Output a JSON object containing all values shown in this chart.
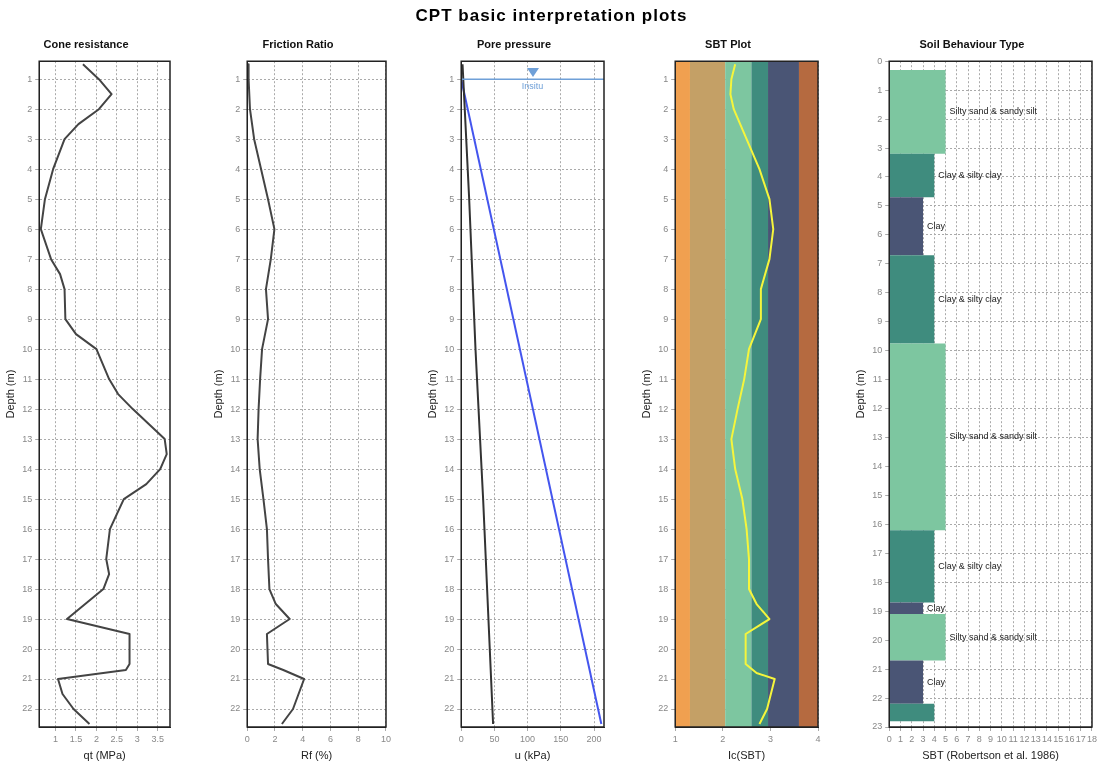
{
  "chart_data": [
    {
      "type": "line",
      "title": "Cone resistance",
      "xlabel": "qt (MPa)",
      "ylabel": "Depth (m)",
      "xlim": [
        0.6,
        3.8
      ],
      "xticks": [
        1,
        1.5,
        2,
        2.5,
        3,
        3.5
      ],
      "ylim": [
        22.6,
        0.4
      ],
      "yticks": [
        1,
        2,
        3,
        4,
        5,
        6,
        7,
        8,
        9,
        10,
        11,
        12,
        13,
        14,
        15,
        16,
        17,
        18,
        19,
        20,
        21,
        22
      ],
      "grid": true,
      "annotations": [
        "CPT basic interpretation plots"
      ],
      "series": [
        {
          "color": "#444444",
          "x": [
            1.67,
            2.06,
            2.37,
            2.06,
            1.56,
            1.22,
            0.94,
            0.74,
            0.64,
            0.89,
            1.11,
            1.22,
            1.24,
            1.5,
            2.0,
            2.31,
            2.53,
            2.89,
            3.28,
            3.67,
            3.72,
            3.56,
            3.22,
            2.67,
            2.33,
            2.24,
            2.31,
            2.17,
            1.28,
            2.81,
            2.81,
            2.72,
            1.06,
            1.17,
            1.44,
            1.83
          ],
          "values": [
            0.5,
            1,
            1.5,
            2,
            2.5,
            3,
            4,
            5,
            6,
            7,
            7.5,
            8,
            9,
            9.5,
            10,
            11,
            11.5,
            12,
            12.5,
            13,
            13.5,
            14,
            14.5,
            15,
            16,
            17,
            17.5,
            18,
            19,
            19.5,
            20.5,
            20.7,
            21,
            21.5,
            22,
            22.5
          ]
        }
      ]
    },
    {
      "type": "line",
      "title": "Friction Ratio",
      "xlabel": "Rf (%)",
      "ylabel": "Depth (m)",
      "xlim": [
        0,
        10
      ],
      "xticks": [
        0,
        2,
        4,
        6,
        8,
        10
      ],
      "ylim": [
        22.6,
        0.4
      ],
      "yticks": [
        1,
        2,
        3,
        4,
        5,
        6,
        7,
        8,
        9,
        10,
        11,
        12,
        13,
        14,
        15,
        16,
        17,
        18,
        19,
        20,
        21,
        22
      ],
      "grid": true,
      "series": [
        {
          "color": "#444444",
          "x": [
            0.1,
            0.1,
            0.2,
            0.5,
            1.0,
            1.5,
            1.96,
            1.7,
            1.35,
            1.5,
            1.07,
            0.93,
            0.82,
            0.75,
            0.9,
            1.17,
            1.42,
            1.5,
            1.6,
            2.06,
            3.06,
            1.42,
            1.5,
            2.6,
            4.1,
            3.3,
            2.5
          ],
          "values": [
            0.5,
            1,
            2,
            3,
            4,
            5,
            6,
            7,
            8,
            9,
            10,
            11,
            12,
            13,
            14,
            15,
            16,
            17,
            18,
            18.5,
            19,
            19.5,
            20.5,
            20.7,
            21,
            22,
            22.5
          ]
        }
      ]
    },
    {
      "type": "line",
      "title": "Pore pressure",
      "xlabel": "u (kPa)",
      "ylabel": "Depth (m)",
      "xlim": [
        0,
        215
      ],
      "xticks": [
        0,
        50,
        100,
        150,
        200
      ],
      "ylim": [
        22.6,
        0.4
      ],
      "yticks": [
        1,
        2,
        3,
        4,
        5,
        6,
        7,
        8,
        9,
        10,
        11,
        12,
        13,
        14,
        15,
        16,
        17,
        18,
        19,
        20,
        21,
        22
      ],
      "grid": true,
      "ref_lines": [
        {
          "axis": "y",
          "value": 1,
          "label": "Insitu",
          "color": "#6fa0d8"
        }
      ],
      "series": [
        {
          "color": "#333333",
          "x": [
            2,
            12,
            21.5,
            33,
            43,
            48
          ],
          "values": [
            0.5,
            5,
            10,
            15,
            20,
            22.5
          ]
        },
        {
          "color": "#4455ee",
          "x": [
            0,
            211
          ],
          "values": [
            1,
            22.5
          ]
        }
      ]
    },
    {
      "type": "line",
      "title": "SBT Plot",
      "xlabel": "Ic(SBT)",
      "ylabel": "Depth (m)",
      "xlim": [
        1,
        4
      ],
      "xticks": [
        1,
        2,
        3,
        4
      ],
      "ylim": [
        22.6,
        0.4
      ],
      "yticks": [
        1,
        2,
        3,
        4,
        5,
        6,
        7,
        8,
        9,
        10,
        11,
        12,
        13,
        14,
        15,
        16,
        17,
        18,
        19,
        20,
        21,
        22
      ],
      "grid": true,
      "bands": [
        {
          "axis": "x",
          "from": 1,
          "to": 1.31,
          "color": "#f0a050"
        },
        {
          "axis": "x",
          "from": 1.31,
          "to": 2.05,
          "color": "#c4a066"
        },
        {
          "axis": "x",
          "from": 2.05,
          "to": 2.6,
          "color": "#7dc6a0"
        },
        {
          "axis": "x",
          "from": 2.6,
          "to": 2.95,
          "color": "#3f8c7e"
        },
        {
          "axis": "x",
          "from": 2.95,
          "to": 3.6,
          "color": "#4a5575"
        },
        {
          "axis": "x",
          "from": 3.6,
          "to": 4,
          "color": "#b56a40"
        }
      ],
      "series": [
        {
          "color": "#f5f53c",
          "x": [
            2.26,
            2.18,
            2.16,
            2.23,
            2.5,
            2.77,
            2.98,
            3.06,
            2.98,
            2.8,
            2.8,
            2.55,
            2.45,
            2.31,
            2.18,
            2.26,
            2.41,
            2.5,
            2.55,
            2.55,
            2.71,
            2.98,
            2.48,
            2.48,
            2.71,
            3.09,
            2.93,
            2.77
          ],
          "values": [
            0.5,
            1,
            1.5,
            2,
            3,
            4,
            5,
            6,
            7,
            8,
            9,
            10,
            11,
            12,
            13,
            14,
            15,
            16,
            17,
            18,
            18.5,
            19,
            19.5,
            20.5,
            20.8,
            21,
            22,
            22.5
          ]
        }
      ]
    },
    {
      "type": "histogram",
      "orientation": "horizontal",
      "title": "Soil Behaviour Type",
      "xlabel": "SBT (Robertson et al. 1986)",
      "ylabel": "Depth (m)",
      "xlim": [
        0,
        18
      ],
      "xticks": [
        0,
        1,
        2,
        3,
        4,
        5,
        6,
        7,
        8,
        9,
        10,
        11,
        12,
        13,
        14,
        15,
        16,
        17,
        18
      ],
      "ylim": [
        23,
        0
      ],
      "yticks": [
        0,
        1,
        2,
        3,
        4,
        5,
        6,
        7,
        8,
        9,
        10,
        11,
        12,
        13,
        14,
        15,
        16,
        17,
        18,
        19,
        20,
        21,
        22,
        23
      ],
      "grid": true,
      "bins": [
        0.3,
        3.2,
        4.7,
        6.7,
        9.75,
        16.2,
        18.7,
        19.1,
        20.7,
        22.2,
        22.8
      ],
      "values": [
        5,
        4,
        3,
        4,
        5,
        4,
        3,
        5,
        3,
        4
      ],
      "colors": [
        "#7dc6a0",
        "#3f8c7e",
        "#4a5575",
        "#3f8c7e",
        "#7dc6a0",
        "#3f8c7e",
        "#4a5575",
        "#7dc6a0",
        "#4a5575",
        "#3f8c7e"
      ],
      "value_labels": [
        "Silty sand & sandy silt",
        "Clay & silty clay",
        "Clay",
        "Clay & silty clay",
        "Silty sand & sandy silt",
        "Clay & silty clay",
        "Clay",
        "Silty sand & sandy silt",
        "Clay",
        null
      ]
    }
  ]
}
